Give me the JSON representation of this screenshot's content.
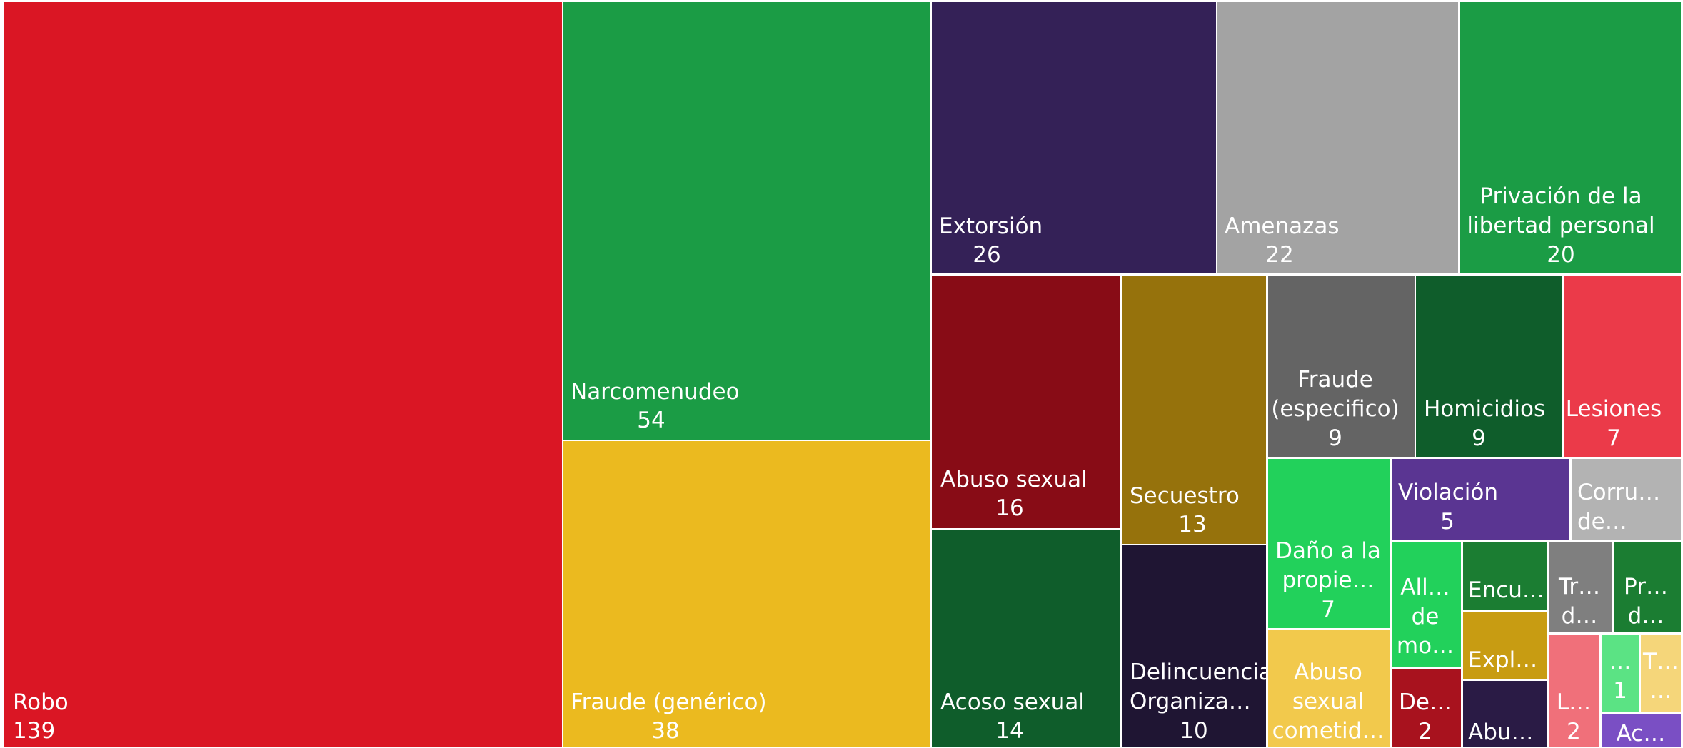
{
  "chart_data": {
    "type": "treemap",
    "items": [
      {
        "label": "Robo",
        "display": [
          "Robo"
        ],
        "value": 139,
        "color": "#DA1624"
      },
      {
        "label": "Narcomenudeo",
        "display": [
          "Narcomenudeo"
        ],
        "value": 54,
        "color": "#1B9C45"
      },
      {
        "label": "Fraude (genérico)",
        "display": [
          "Fraude (genérico)"
        ],
        "value": 38,
        "color": "#EBBA1F"
      },
      {
        "label": "Extorsión",
        "display": [
          "Extorsión"
        ],
        "value": 26,
        "color": "#342157"
      },
      {
        "label": "Amenazas",
        "display": [
          "Amenazas"
        ],
        "value": 22,
        "color": "#A3A3A3"
      },
      {
        "label": "Privación de la libertad personal",
        "display": [
          "Privación de la",
          "libertad personal"
        ],
        "value": 20,
        "color": "#1B9C45"
      },
      {
        "label": "Abuso sexual",
        "display": [
          "Abuso sexual"
        ],
        "value": 16,
        "color": "#880C16"
      },
      {
        "label": "Acoso sexual",
        "display": [
          "Acoso sexual"
        ],
        "value": 14,
        "color": "#0F5D2B"
      },
      {
        "label": "Secuestro",
        "display": [
          "Secuestro"
        ],
        "value": 13,
        "color": "#96720C"
      },
      {
        "label": "Delincuencia Organizada",
        "display": [
          "Delincuencia",
          "Organiza…"
        ],
        "value": 10,
        "color": "#1F1533"
      },
      {
        "label": "Fraude (especifico)",
        "display": [
          "Fraude",
          "(especifico)"
        ],
        "value": 9,
        "color": "#646464"
      },
      {
        "label": "Homicidios",
        "display": [
          "Homicidios"
        ],
        "value": 9,
        "color": "#0F5D2B"
      },
      {
        "label": "Lesiones",
        "display": [
          "Lesiones"
        ],
        "value": 7,
        "color": "#EB3A49"
      },
      {
        "label": "Daño a la propiedad",
        "display": [
          "Daño a la",
          "propie…"
        ],
        "value": 7,
        "color": "#22D15B"
      },
      {
        "label": "Abuso sexual cometido",
        "display": [
          "Abuso",
          "sexual",
          "cometid…"
        ],
        "value": null,
        "color": "#F2C94C"
      },
      {
        "label": "Violación",
        "display": [
          "Violación"
        ],
        "value": 5,
        "color": "#5A3592"
      },
      {
        "label": "Corrupción de menores",
        "display": [
          "Corru…",
          "de…"
        ],
        "value": null,
        "color": "#B3B3B3"
      },
      {
        "label": "Allanamiento de morada",
        "display": [
          "All…",
          "de",
          "mo…"
        ],
        "value": null,
        "color": "#22D15B"
      },
      {
        "label": "Encubrimiento",
        "display": [
          "Encu…"
        ],
        "value": null,
        "color": "#1B7D32"
      },
      {
        "label": "Explotación",
        "display": [
          "Expl…"
        ],
        "value": null,
        "color": "#C89C12"
      },
      {
        "label": "De…",
        "display": [
          "De…"
        ],
        "value": 2,
        "color": "#A8121E"
      },
      {
        "label": "Abu…",
        "display": [
          "Abu…"
        ],
        "value": null,
        "color": "#2A1B45"
      },
      {
        "label": "Trata de personas",
        "display": [
          "Tr…",
          "d…"
        ],
        "value": null,
        "color": "#7F7F7F"
      },
      {
        "label": "Pr… d…",
        "display": [
          "Pr…",
          "d…"
        ],
        "value": null,
        "color": "#1B7D32"
      },
      {
        "label": "L…",
        "display": [
          "L…"
        ],
        "value": 2,
        "color": "#F0707A"
      },
      {
        "label": "…",
        "display": [
          "…"
        ],
        "value": 1,
        "color": "#5BE384"
      },
      {
        "label": "T…",
        "display": [
          "T…",
          "…"
        ],
        "value": null,
        "color": "#F5D67A"
      },
      {
        "label": "Ac…",
        "display": [
          "Ac…"
        ],
        "value": null,
        "color": "#7A4FC4"
      }
    ]
  }
}
